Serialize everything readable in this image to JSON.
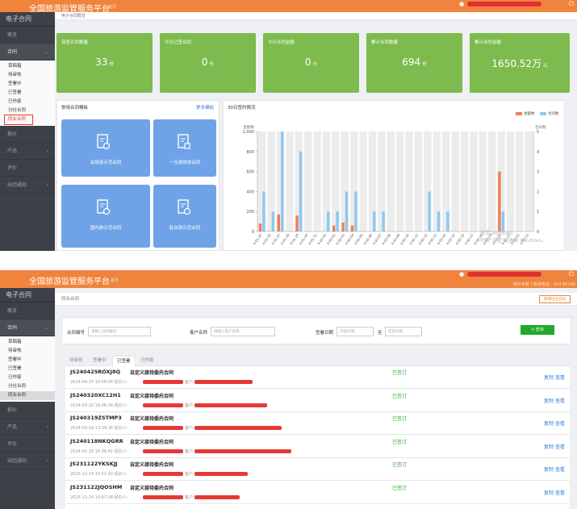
{
  "screen1": {
    "header": {
      "title": "全国旅游监管服务平台",
      "subtitle": "首页"
    },
    "sidebar": {
      "title": "电子合同",
      "items": [
        {
          "label": "概览"
        },
        {
          "label": "合同",
          "open": true
        },
        {
          "label": "报价"
        },
        {
          "label": "产品"
        },
        {
          "label": "评价"
        },
        {
          "label": "出团通知"
        }
      ],
      "sub_items": [
        "草稿箱",
        "待审核",
        "签署中",
        "已签署",
        "已作废",
        "分社合同",
        "同业合同"
      ],
      "highlighted_sub": "同业合同"
    },
    "breadcrumb": "电子合同概览",
    "stats": [
      {
        "label": "待签合同数量",
        "value": "33",
        "unit": "份"
      },
      {
        "label": "今日已签合同",
        "value": "0",
        "unit": "份"
      },
      {
        "label": "今日合同金额",
        "value": "0",
        "unit": "元"
      },
      {
        "label": "累计合同数量",
        "value": "694",
        "unit": "份"
      },
      {
        "label": "累计合同金额",
        "value": "1650.52万",
        "unit": "元"
      }
    ],
    "templates_panel": {
      "title": "常用合同模板",
      "more": "更多模板",
      "items": [
        {
          "label": "出境游示范合同"
        },
        {
          "label": "一日游旅游合同"
        },
        {
          "label": "国内游示范合同"
        },
        {
          "label": "赴台游示范合同"
        }
      ]
    },
    "chart_panel": {
      "title": "30日签约情况"
    },
    "watermark": {
      "line1": "激活 Windows",
      "line2": "转到\"设置\"以激活 Windows。"
    }
  },
  "screen2": {
    "header": {
      "title": "全国旅游监管服务平台",
      "subtitle": "首页",
      "hotline": "操作手册 | 热线电话：010-85166"
    },
    "sidebar": {
      "title": "电子合同",
      "items": [
        {
          "label": "概览"
        },
        {
          "label": "合同",
          "open": true
        },
        {
          "label": "报价"
        },
        {
          "label": "产品"
        },
        {
          "label": "评价"
        },
        {
          "label": "出团通知"
        }
      ],
      "sub_items": [
        "草稿箱",
        "待审核",
        "签署中",
        "已签署",
        "已作废",
        "分社合同",
        "同业合同"
      ],
      "active_sub": "同业合同"
    },
    "breadcrumb": "同业合同",
    "create_button": "新增同业合同",
    "search": {
      "contract_no_label": "合同编号",
      "contract_no_placeholder": "请输入合同编号",
      "customer_label": "客户名称",
      "customer_placeholder": "请输入客户名称",
      "date_label": "签署日期",
      "date_start_placeholder": "开始日期",
      "date_to": "至",
      "date_end_placeholder": "结束日期",
      "query_button": "查询"
    },
    "tabs": [
      "待审核",
      "签署中",
      "已签署",
      "已作废"
    ],
    "active_tab": "已签署",
    "customer_prefix": "客户:",
    "rows": [
      {
        "id": "JS240425ROXJ8Q",
        "name": "自定义接待委托合同",
        "meta": "2024-04-25 10:08:06 经办人:",
        "status": "已签订",
        "copy": "复制",
        "view": "查看"
      },
      {
        "id": "JS240320XC12H1",
        "name": "自定义接待委托合同",
        "meta": "2024-03-20 16:06:36 经办人:",
        "status": "已签订",
        "copy": "复制",
        "view": "查看"
      },
      {
        "id": "JS240319ZSTMP3",
        "name": "自定义接待委托合同",
        "meta": "2024-03-19 13:39:36 经办人:",
        "status": "已签订",
        "copy": "复制",
        "view": "查看"
      },
      {
        "id": "JS240118NKQGRR",
        "name": "自定义接待委托合同",
        "meta": "2024-01-18 16:36:41 经办人:",
        "status": "已签订",
        "copy": "复制",
        "view": "查看"
      },
      {
        "id": "JS231122YKSKJJ",
        "name": "自定义接待委托合同",
        "meta": "2023-11-24 10:52:42 经办人:",
        "status": "已签订",
        "copy": "复制",
        "view": "查看"
      },
      {
        "id": "JS231122JQOSHM",
        "name": "自定义接待委托合同",
        "meta": "2023-11-24 10:47:28 经办人:",
        "status": "已签订",
        "copy": "复制",
        "view": "查看"
      }
    ]
  },
  "colors": {
    "orange": "#f0843c",
    "green": "#7dbb4e",
    "blue": "#6fa3e8",
    "sidebar": "#3d4147",
    "bar_amount": "#ef7e55",
    "bar_count": "#8ec8ef"
  },
  "chart_data": {
    "type": "bar",
    "legend": [
      "金额数",
      "合同数"
    ],
    "left_axis": {
      "label": "金额数",
      "ticks": [
        "0",
        "200",
        "400",
        "600",
        "800",
        "1,000"
      ],
      "ylim": [
        0,
        1000
      ]
    },
    "right_axis": {
      "label": "合同数",
      "ticks": [
        "0",
        "1",
        "2",
        "3",
        "4",
        "5"
      ],
      "ylim": [
        0,
        5
      ]
    },
    "categories": [
      "4-01-25",
      "4-01-26",
      "4-01-27",
      "4-01-28",
      "4-01-29",
      "4-01-30",
      "4-01-31",
      "4-02-01",
      "4-02-02",
      "4-02-03",
      "4-02-04",
      "4-02-05",
      "4-02-06",
      "4-02-07",
      "4-02-08",
      "4-02-09",
      "4-02-10",
      "4-02-11",
      "4-02-12",
      "4-02-13",
      "4-02-14",
      "4-02-15",
      "4-02-16",
      "4-02-17",
      "4-02-18",
      "4-02-19",
      "4-02-20",
      "4-02-21",
      "4-02-22",
      "4-02-23"
    ],
    "series": [
      {
        "name": "金额数",
        "axis": "left",
        "values": [
          80,
          0,
          170,
          0,
          160,
          0,
          0,
          0,
          60,
          90,
          60,
          0,
          0,
          0,
          0,
          0,
          0,
          0,
          0,
          0,
          0,
          0,
          0,
          0,
          0,
          0,
          600,
          0,
          0,
          0
        ]
      },
      {
        "name": "合同数",
        "axis": "right",
        "values": [
          2,
          1,
          5,
          0,
          4,
          0,
          0,
          1,
          1,
          2,
          2,
          0,
          1,
          1,
          0,
          0,
          0,
          0,
          2,
          1,
          1,
          0,
          0,
          0,
          0,
          0,
          1,
          0,
          0,
          0
        ]
      }
    ],
    "grid": true
  }
}
